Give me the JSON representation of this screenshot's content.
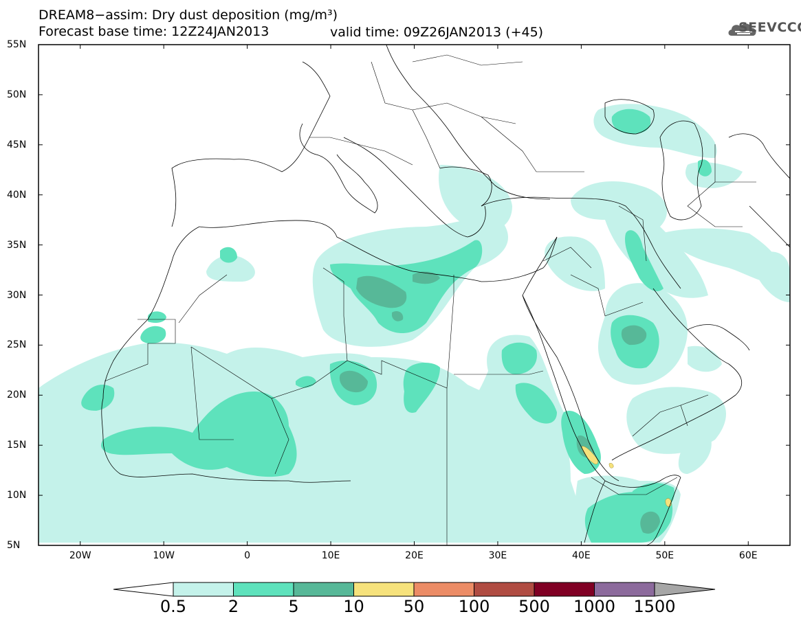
{
  "title": {
    "line1": "DREAM8−assim: Dry dust deposition (mg/m³)",
    "line2": "Forecast base time: 12Z24JAN2013",
    "valid": "valid time: 09Z26JAN2013 (+45)"
  },
  "logo": {
    "text": "SEEVCCC",
    "icon": "cloud-logo-icon"
  },
  "axes": {
    "y_labels": [
      "55N",
      "50N",
      "45N",
      "40N",
      "35N",
      "30N",
      "25N",
      "20N",
      "15N",
      "10N",
      "5N"
    ],
    "x_labels": [
      "20W",
      "10W",
      "0",
      "10E",
      "20E",
      "30E",
      "40E",
      "50E",
      "60E"
    ],
    "lon_range": [
      -25,
      65
    ],
    "lat_range": [
      5,
      55
    ]
  },
  "legend": {
    "labels": [
      "0.5",
      "2",
      "5",
      "10",
      "50",
      "100",
      "500",
      "1000",
      "1500"
    ],
    "colors": [
      "#c4f2ea",
      "#5ee2bc",
      "#57b898",
      "#f6e27c",
      "#ec8c66",
      "#b04c42",
      "#800024",
      "#8c6a9c"
    ],
    "under_color": "#ffffff",
    "over_color": "#a6a6a6"
  }
}
